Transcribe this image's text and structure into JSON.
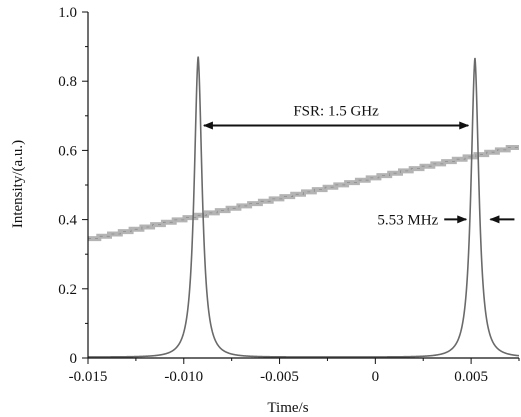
{
  "chart_data": {
    "type": "line",
    "xlabel": "Time/s",
    "ylabel": "Intensity/(a.u.)",
    "xlim": [
      -0.015,
      0.0075
    ],
    "ylim": [
      0,
      1.0
    ],
    "x_ticks": [
      -0.015,
      -0.01,
      -0.005,
      0,
      0.005
    ],
    "x_tick_labels": [
      "-0.015",
      "-0.010",
      "-0.005",
      "0",
      "0.005"
    ],
    "y_ticks": [
      0,
      0.2,
      0.4,
      0.6,
      0.8,
      1.0
    ],
    "y_tick_labels": [
      "0",
      "0.2",
      "0.4",
      "0.6",
      "0.8",
      "1.0"
    ],
    "grid": false,
    "colors": {
      "transmission": "#6a6a6a",
      "ramp": "#b4b4b4",
      "axis": "#111111",
      "arrow": "#111111"
    },
    "series": [
      {
        "style": "peaks",
        "baseline": 0.003,
        "peaks": [
          {
            "center": -0.00925,
            "height": 0.87,
            "halfwidth": 0.00028
          },
          {
            "center": 0.0052,
            "height": 0.865,
            "halfwidth": 0.00028
          }
        ]
      },
      {
        "style": "staircase-ramp",
        "x": [
          -0.015,
          0.0075
        ],
        "y": [
          0.345,
          0.615
        ]
      }
    ],
    "annotations": [
      {
        "type": "double-arrow",
        "text": "FSR: 1.5 GHz",
        "x_from": -0.00895,
        "x_to": 0.00485,
        "y": 0.75
      },
      {
        "type": "inward-arrows",
        "text": "5.53 MHz",
        "x_left": 0.00485,
        "x_right": 0.0058,
        "y": 0.395
      }
    ]
  }
}
